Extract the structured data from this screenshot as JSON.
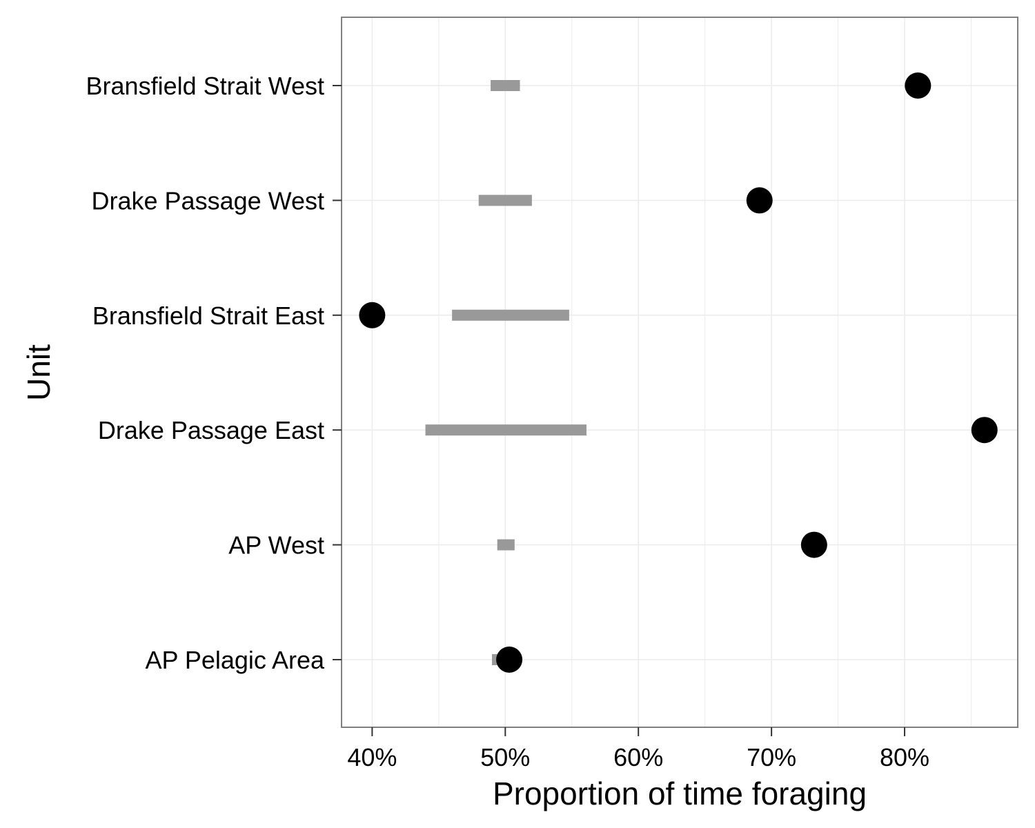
{
  "chart_data": {
    "type": "dot-range",
    "xlabel": "Proportion of time foraging",
    "ylabel": "Unit",
    "x_tick_values": [
      40,
      50,
      60,
      70,
      80
    ],
    "x_tick_labels": [
      "40%",
      "50%",
      "60%",
      "70%",
      "80%"
    ],
    "xlim": [
      37.7,
      88.5
    ],
    "grid": true,
    "units": [
      {
        "name": "Bransfield Strait West",
        "point": 81.0,
        "range": [
          48.9,
          51.1
        ]
      },
      {
        "name": "Drake Passage West",
        "point": 69.1,
        "range": [
          48.0,
          52.0
        ]
      },
      {
        "name": "Bransfield Strait East",
        "point": 40.0,
        "range": [
          46.0,
          54.8
        ]
      },
      {
        "name": "Drake Passage East",
        "point": 86.0,
        "range": [
          44.0,
          56.1
        ]
      },
      {
        "name": "AP West",
        "point": 73.2,
        "range": [
          49.4,
          50.7
        ]
      },
      {
        "name": "AP Pelagic Area",
        "point": 50.3,
        "range": [
          49.0,
          51.0
        ]
      }
    ],
    "colors": {
      "point": "#000000",
      "range": "#999999",
      "panel_border": "#7f7f7f",
      "grid": "#ebebeb"
    }
  }
}
